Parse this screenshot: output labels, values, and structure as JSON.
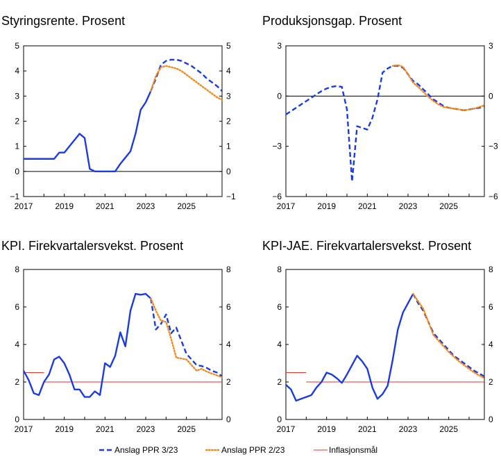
{
  "legend": [
    {
      "key": "ppr323",
      "label": "Anslag PPR 3/23"
    },
    {
      "key": "ppr223",
      "label": "Anslag PPR 2/23"
    },
    {
      "key": "inflasjonsmal",
      "label": "Inflasjonsmål"
    }
  ],
  "colors": {
    "ppr323": "#1a3be0",
    "ppr223": "#f08a1e",
    "inflasjonsmal": "#e8302a",
    "axis": "#000000"
  },
  "chart_data": [
    {
      "id": "styringsrente",
      "type": "line",
      "title": "Styringsrente. Prosent",
      "xlim": [
        2017,
        2026.75
      ],
      "ylim": [
        -1,
        5
      ],
      "yticks": [
        -1,
        0,
        1,
        2,
        3,
        4,
        5
      ],
      "xticks": [
        2017,
        2019,
        2021,
        2023,
        2025
      ],
      "zero_line": true,
      "series": [
        {
          "key": "hist",
          "style": "solid",
          "color": "#1a3be0",
          "x": [
            2017,
            2018.5,
            2018.75,
            2019,
            2019.5,
            2019.75,
            2020,
            2020.25,
            2020.5,
            2021.5,
            2021.75,
            2022,
            2022.25,
            2022.5,
            2022.75,
            2023,
            2023.25
          ],
          "y": [
            0.5,
            0.5,
            0.75,
            0.75,
            1.25,
            1.5,
            1.33,
            0.1,
            0,
            0,
            0.3,
            0.55,
            0.8,
            1.5,
            2.45,
            2.75,
            3.2
          ]
        },
        {
          "key": "ppr323",
          "style": "dashed",
          "color": "#1a3be0",
          "x": [
            2023.25,
            2023.5,
            2023.75,
            2024,
            2024.25,
            2024.5,
            2024.75,
            2025,
            2025.25,
            2025.5,
            2025.75,
            2026,
            2026.25,
            2026.5,
            2026.75
          ],
          "y": [
            3.2,
            3.7,
            4.25,
            4.4,
            4.45,
            4.45,
            4.4,
            4.3,
            4.2,
            4.05,
            3.9,
            3.7,
            3.55,
            3.4,
            3.2
          ]
        },
        {
          "key": "ppr223",
          "style": "dotted",
          "color": "#f08a1e",
          "x": [
            2023.25,
            2023.5,
            2023.75,
            2024,
            2024.25,
            2024.5,
            2024.75,
            2025,
            2025.25,
            2025.5,
            2025.75,
            2026,
            2026.25,
            2026.5,
            2026.75
          ],
          "y": [
            3.2,
            3.8,
            4.15,
            4.2,
            4.15,
            4.1,
            4.0,
            3.85,
            3.7,
            3.55,
            3.4,
            3.25,
            3.1,
            2.95,
            2.85
          ]
        }
      ]
    },
    {
      "id": "produksjonsgap",
      "type": "line",
      "title": "Produksjonsgap. Prosent",
      "xlim": [
        2017,
        2026.75
      ],
      "ylim": [
        -6,
        3
      ],
      "yticks": [
        -6,
        -3,
        0,
        3
      ],
      "xticks": [
        2017,
        2019,
        2021,
        2023,
        2025
      ],
      "zero_line": true,
      "series": [
        {
          "key": "ppr323",
          "style": "dashed",
          "color": "#1a3be0",
          "x": [
            2017,
            2017.25,
            2017.5,
            2017.75,
            2018,
            2018.25,
            2018.5,
            2018.75,
            2019,
            2019.25,
            2019.5,
            2019.75,
            2020,
            2020.25,
            2020.5,
            2020.75,
            2021,
            2021.25,
            2021.5,
            2021.75,
            2022,
            2022.25,
            2022.5,
            2022.75,
            2023,
            2023.25,
            2023.5,
            2023.75,
            2024,
            2024.25,
            2024.5,
            2024.75,
            2025,
            2025.25,
            2025.5,
            2025.75,
            2026,
            2026.25,
            2026.5,
            2026.75
          ],
          "y": [
            -1.1,
            -0.9,
            -0.7,
            -0.5,
            -0.3,
            -0.1,
            0.1,
            0.3,
            0.45,
            0.55,
            0.6,
            0.55,
            -0.8,
            -5.1,
            -1.8,
            -1.9,
            -2.0,
            -1.3,
            -0.2,
            1.4,
            1.65,
            1.8,
            1.8,
            1.7,
            1.3,
            0.9,
            0.7,
            0.4,
            0.1,
            -0.2,
            -0.4,
            -0.6,
            -0.7,
            -0.75,
            -0.8,
            -0.85,
            -0.8,
            -0.75,
            -0.7,
            -0.65
          ]
        },
        {
          "key": "ppr223",
          "style": "dotted",
          "color": "#f08a1e",
          "x": [
            2022.25,
            2022.5,
            2022.75,
            2023,
            2023.25,
            2023.5,
            2023.75,
            2024,
            2024.25,
            2024.5,
            2024.75,
            2025,
            2025.25,
            2025.5,
            2025.75,
            2026,
            2026.25,
            2026.5,
            2026.75
          ],
          "y": [
            1.8,
            1.85,
            1.75,
            1.3,
            0.8,
            0.55,
            0.25,
            -0.05,
            -0.3,
            -0.5,
            -0.65,
            -0.7,
            -0.75,
            -0.8,
            -0.85,
            -0.8,
            -0.75,
            -0.65,
            -0.55
          ]
        }
      ]
    },
    {
      "id": "kpi",
      "type": "line",
      "title": "KPI. Firekvartalersvekst. Prosent",
      "xlim": [
        2017,
        2026.75
      ],
      "ylim": [
        0,
        8
      ],
      "yticks": [
        0,
        2,
        4,
        6,
        8
      ],
      "xticks": [
        2017,
        2019,
        2021,
        2023,
        2025
      ],
      "zero_line": false,
      "target": {
        "value": 2.0,
        "x": [
          2018,
          2026.75
        ],
        "old_value": 2.5,
        "old_x": [
          2017,
          2018
        ]
      },
      "series": [
        {
          "key": "hist",
          "style": "solid",
          "color": "#1a3be0",
          "x": [
            2017,
            2017.25,
            2017.5,
            2017.75,
            2018,
            2018.25,
            2018.5,
            2018.75,
            2019,
            2019.25,
            2019.5,
            2019.75,
            2020,
            2020.25,
            2020.5,
            2020.75,
            2021,
            2021.25,
            2021.5,
            2021.75,
            2022,
            2022.25,
            2022.5,
            2022.75,
            2023,
            2023.25
          ],
          "y": [
            2.6,
            2.1,
            1.4,
            1.3,
            2.0,
            2.4,
            3.2,
            3.35,
            3.0,
            2.4,
            1.6,
            1.6,
            1.2,
            1.2,
            1.5,
            1.3,
            3.0,
            2.8,
            3.4,
            4.65,
            3.9,
            5.8,
            6.7,
            6.65,
            6.7,
            6.45
          ]
        },
        {
          "key": "ppr323",
          "style": "dashed",
          "color": "#1a3be0",
          "x": [
            2023.25,
            2023.5,
            2023.75,
            2024,
            2024.25,
            2024.5,
            2024.75,
            2025,
            2025.25,
            2025.5,
            2025.75,
            2026,
            2026.25,
            2026.5,
            2026.75
          ],
          "y": [
            6.45,
            4.8,
            5.1,
            5.6,
            4.6,
            4.9,
            4.2,
            3.5,
            3.2,
            2.9,
            2.85,
            2.75,
            2.6,
            2.5,
            2.3
          ]
        },
        {
          "key": "ppr223",
          "style": "dotted",
          "color": "#f08a1e",
          "x": [
            2023.25,
            2023.5,
            2023.75,
            2024,
            2024.25,
            2024.5,
            2024.75,
            2025,
            2025.25,
            2025.5,
            2025.75,
            2026,
            2026.25,
            2026.5,
            2026.75
          ],
          "y": [
            6.45,
            5.8,
            5.25,
            5.2,
            4.3,
            3.3,
            3.25,
            3.2,
            2.9,
            2.6,
            2.7,
            2.55,
            2.45,
            2.35,
            2.25
          ]
        }
      ]
    },
    {
      "id": "kpi-jae",
      "type": "line",
      "title": "KPI-JAE. Firekvartalersvekst. Prosent",
      "xlim": [
        2017,
        2026.75
      ],
      "ylim": [
        0,
        8
      ],
      "yticks": [
        0,
        2,
        4,
        6,
        8
      ],
      "xticks": [
        2017,
        2019,
        2021,
        2023,
        2025
      ],
      "zero_line": false,
      "target": {
        "value": 2.0,
        "x": [
          2018,
          2026.75
        ],
        "old_value": 2.5,
        "old_x": [
          2017,
          2018
        ]
      },
      "series": [
        {
          "key": "hist",
          "style": "solid",
          "color": "#1a3be0",
          "x": [
            2017,
            2017.25,
            2017.5,
            2017.75,
            2018,
            2018.25,
            2018.5,
            2018.75,
            2019,
            2019.25,
            2019.5,
            2019.75,
            2020,
            2020.25,
            2020.5,
            2020.75,
            2021,
            2021.25,
            2021.5,
            2021.75,
            2022,
            2022.25,
            2022.5,
            2022.75,
            2023,
            2023.25
          ],
          "y": [
            1.85,
            1.6,
            1.0,
            1.1,
            1.2,
            1.3,
            1.7,
            2.0,
            2.5,
            2.4,
            2.2,
            1.95,
            2.4,
            2.9,
            3.4,
            3.1,
            2.7,
            1.7,
            1.1,
            1.35,
            1.8,
            3.2,
            4.8,
            5.7,
            6.2,
            6.7
          ]
        },
        {
          "key": "ppr323",
          "style": "dashed",
          "color": "#1a3be0",
          "x": [
            2023.25,
            2023.5,
            2023.75,
            2024,
            2024.25,
            2024.5,
            2024.75,
            2025,
            2025.25,
            2025.5,
            2025.75,
            2026,
            2026.25,
            2026.5,
            2026.75
          ],
          "y": [
            6.7,
            6.2,
            5.8,
            5.2,
            4.6,
            4.3,
            4.0,
            3.7,
            3.4,
            3.2,
            3.0,
            2.8,
            2.6,
            2.45,
            2.3
          ]
        },
        {
          "key": "ppr223",
          "style": "dotted",
          "color": "#f08a1e",
          "x": [
            2023.25,
            2023.5,
            2023.75,
            2024,
            2024.25,
            2024.5,
            2024.75,
            2025,
            2025.25,
            2025.5,
            2025.75,
            2026,
            2026.25,
            2026.5,
            2026.75
          ],
          "y": [
            6.7,
            6.3,
            5.9,
            5.2,
            4.5,
            4.2,
            3.9,
            3.6,
            3.35,
            3.1,
            2.9,
            2.7,
            2.5,
            2.35,
            2.2
          ]
        }
      ]
    }
  ]
}
